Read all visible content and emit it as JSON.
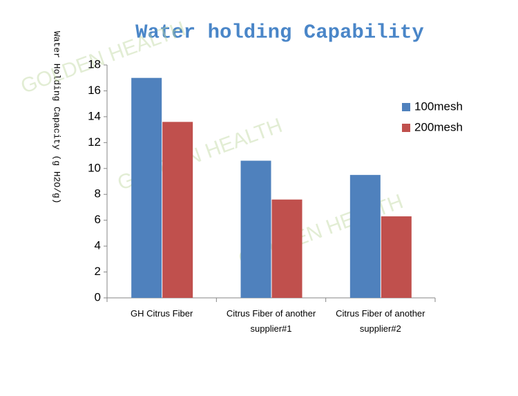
{
  "chart_data": {
    "type": "bar",
    "title": "Water holding Capability",
    "y_label": "Water Holding Capacity (g H2O/g)",
    "watermark": "GOLDEN HEALTH",
    "categories": [
      "GH Citrus Fiber",
      "Citrus Fiber of another supplier#1",
      "Citrus Fiber of another supplier#2"
    ],
    "series": [
      {
        "name": "100mesh",
        "color": "#4f81bd",
        "values": [
          17,
          10.6,
          9.5
        ]
      },
      {
        "name": "200mesh",
        "color": "#c0504d",
        "values": [
          13.6,
          7.6,
          6.3
        ]
      }
    ],
    "ylim": [
      0,
      18
    ],
    "yticks": [
      0,
      2,
      4,
      6,
      8,
      10,
      12,
      14,
      16,
      18
    ],
    "legend": "right"
  }
}
